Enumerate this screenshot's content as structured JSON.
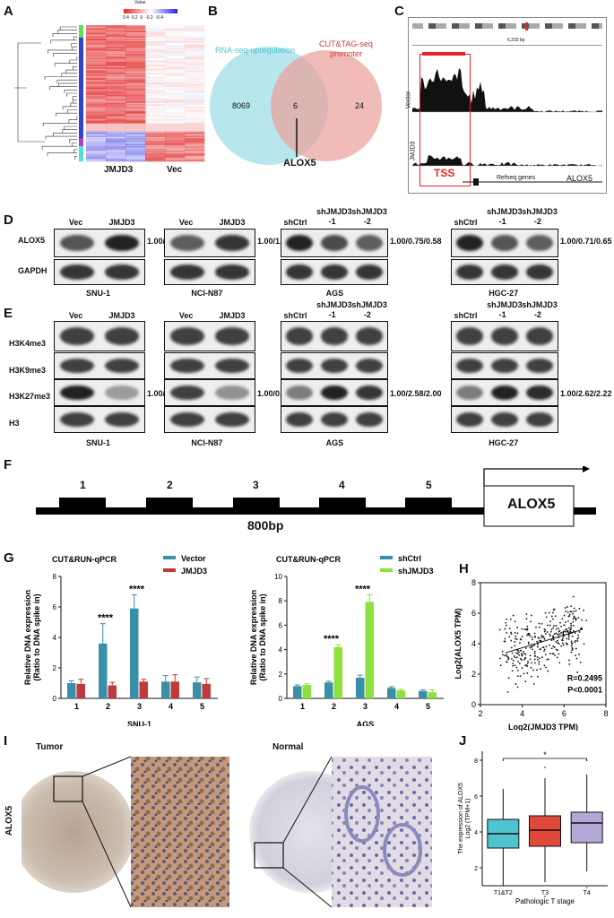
{
  "labels": {
    "A": "A",
    "B": "B",
    "C": "C",
    "D": "D",
    "E": "E",
    "F": "F",
    "G": "G",
    "H": "H",
    "I": "I",
    "J": "J"
  },
  "panelA": {
    "legend_title": "Value",
    "legend_ticks": [
      "0.4",
      "0.2",
      "0",
      "-0.2",
      "-0.4"
    ],
    "col_labels": [
      "JMJD3",
      "Vec"
    ]
  },
  "panelB": {
    "left_label": "RNA-seq-upregulation",
    "right_label_1": "CUT&TAG-seq",
    "right_label_2": "promoter",
    "left_count": "8069",
    "overlap_count": "6",
    "right_count": "24",
    "gene": "ALOX5"
  },
  "panelC": {
    "track1": "Vector",
    "track2": "JMJD3",
    "tss": "TSS",
    "refseq": "Refseq genes",
    "gene": "ALOX5",
    "scale": "6,333 bp"
  },
  "panelD": {
    "row_labels": [
      "ALOX5",
      "GAPDH"
    ],
    "blots": [
      {
        "cols": [
          "Vec",
          "JMJD3"
        ],
        "cell": "SNU-1",
        "ratio": "1.00/1.50"
      },
      {
        "cols": [
          "Vec",
          "JMJD3"
        ],
        "cell": "NCI-N87",
        "ratio": "1.00/1.21"
      },
      {
        "cols": [
          "shCtrl",
          "shJMJD3\n-1",
          "shJMJD3\n-2"
        ],
        "cell": "AGS",
        "ratio": "1.00/0.75/0.58"
      },
      {
        "cols": [
          "shCtrl",
          "shJMJD3\n-1",
          "shJMJD3\n-2"
        ],
        "cell": "HGC-27",
        "ratio": "1.00/0.71/0.65"
      }
    ]
  },
  "panelE": {
    "row_labels": [
      "H3K4me3",
      "H3K9me3",
      "H3K27me3",
      "H3"
    ],
    "ratios": [
      "1.00/0.42",
      "1.00/0.52",
      "1.00/2.58/2.00",
      "1.00/2.62/2.22"
    ],
    "cells": [
      "SNU-1",
      "NCI-N87",
      "AGS",
      "HGC-27"
    ]
  },
  "panelF": {
    "boxes": [
      "1",
      "2",
      "3",
      "4",
      "5"
    ],
    "gene": "ALOX5",
    "scale": "800bp"
  },
  "chart_data": [
    {
      "type": "bar",
      "panel": "G-left",
      "title": "CUT&RUN-qPCR",
      "xlabel": "SNU-1",
      "ylabel": "Relative DNA expression",
      "ylabel2": "(Ratio to DNA spike in)",
      "categories": [
        "1",
        "2",
        "3",
        "4",
        "5"
      ],
      "ylim": [
        0,
        8
      ],
      "yticks": [
        "0",
        "2",
        "4",
        "6",
        "8"
      ],
      "series": [
        {
          "name": "Vector",
          "color": "#3a8fa8",
          "values": [
            1.0,
            3.6,
            5.9,
            1.1,
            1.05
          ],
          "err": [
            0.15,
            1.3,
            0.9,
            0.4,
            0.35
          ]
        },
        {
          "name": "JMJD3",
          "color": "#c0393b",
          "values": [
            0.95,
            0.85,
            1.1,
            1.1,
            0.95
          ],
          "err": [
            0.3,
            0.2,
            0.15,
            0.45,
            0.35
          ]
        }
      ],
      "significance": [
        {
          "category": "2",
          "text": "****"
        },
        {
          "category": "3",
          "text": "****"
        }
      ]
    },
    {
      "type": "bar",
      "panel": "G-right",
      "title": "CUT&RUN-qPCR",
      "xlabel": "AGS",
      "ylabel": "Relative DNA expression",
      "ylabel2": "(Ratio to DNA spike in)",
      "categories": [
        "1",
        "2",
        "3",
        "4",
        "5"
      ],
      "ylim": [
        0,
        10
      ],
      "yticks": [
        "0",
        "2",
        "4",
        "6",
        "8",
        "10"
      ],
      "series": [
        {
          "name": "shCtrl",
          "color": "#3a8fa8",
          "values": [
            1.0,
            1.3,
            1.7,
            0.85,
            0.6
          ],
          "err": [
            0.1,
            0.1,
            0.2,
            0.1,
            0.1
          ]
        },
        {
          "name": "shJMJD3",
          "color": "#8ee03c",
          "values": [
            1.1,
            4.2,
            7.9,
            0.65,
            0.5
          ],
          "err": [
            0.1,
            0.2,
            0.6,
            0.1,
            0.2
          ]
        }
      ],
      "significance": [
        {
          "category": "2",
          "text": "****"
        },
        {
          "category": "3",
          "text": "****"
        }
      ]
    },
    {
      "type": "scatter",
      "panel": "H",
      "xlabel": "Log2(JMJD3 TPM)",
      "ylabel": "Log2(ALOX5 TPM)",
      "xlim": [
        2,
        8
      ],
      "ylim": [
        0,
        8
      ],
      "xticks": [
        "2",
        "4",
        "6",
        "8"
      ],
      "yticks": [
        "0",
        "2",
        "4",
        "6",
        "8"
      ],
      "stats": [
        "R=0.2495",
        "P<0.0001"
      ],
      "trend": {
        "x": [
          3.2,
          6.8
        ],
        "y": [
          3.4,
          4.9
        ]
      }
    },
    {
      "type": "box",
      "panel": "J",
      "xlabel": "Pathologic T stage",
      "ylabel": "The expression of ALOX5",
      "ylabel2": "Log2 (TPM+1)",
      "categories": [
        "T1&T2",
        "T3",
        "T4"
      ],
      "ylim": [
        1,
        8.5
      ],
      "yticks": [
        "2",
        "4",
        "6",
        "8"
      ],
      "colors": [
        "#4fc3d0",
        "#e0483a",
        "#b3a7d6"
      ],
      "boxes": [
        {
          "min": 1.0,
          "q1": 3.1,
          "median": 3.9,
          "q3": 4.7,
          "max": 6.4,
          "outliers": []
        },
        {
          "min": 1.2,
          "q1": 3.2,
          "median": 4.1,
          "q3": 4.9,
          "max": 7.0,
          "outliers": [
            0.4,
            7.6
          ]
        },
        {
          "min": 1.8,
          "q1": 3.4,
          "median": 4.5,
          "q3": 5.1,
          "max": 7.2,
          "outliers": [
            0.9,
            8.0
          ]
        }
      ],
      "significance": "*"
    }
  ],
  "panelI": {
    "row_label": "ALOX5",
    "left": "Tumor",
    "right": "Normal"
  }
}
